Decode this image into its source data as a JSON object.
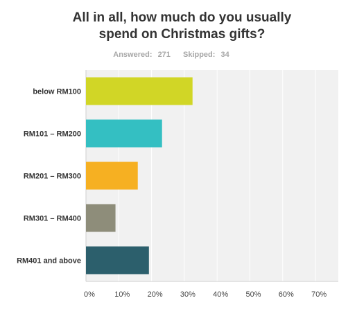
{
  "header": {
    "title_line1": "All in all, how much do you usually",
    "title_line2": "spend on Christmas gifts?",
    "answered_label": "Answered:",
    "answered_value": "271",
    "skipped_label": "Skipped:",
    "skipped_value": "34"
  },
  "chart_data": {
    "type": "bar",
    "orientation": "horizontal",
    "title": "All in all, how much do you usually spend on Christmas gifts?",
    "categories": [
      "below RM100",
      "RM101 – RM200",
      "RM201 – RM300",
      "RM301 – RM400",
      "RM401 and above"
    ],
    "values": [
      32.5,
      23.2,
      15.8,
      9.0,
      19.2
    ],
    "colors": [
      "#d1d626",
      "#34bfc2",
      "#f6b022",
      "#8e8d7a",
      "#2c5f6c"
    ],
    "xticks": [
      "0%",
      "10%",
      "20%",
      "30%",
      "40%",
      "50%",
      "60%",
      "70%"
    ],
    "xlim": [
      0,
      75
    ],
    "grid": true,
    "legend": "none"
  }
}
